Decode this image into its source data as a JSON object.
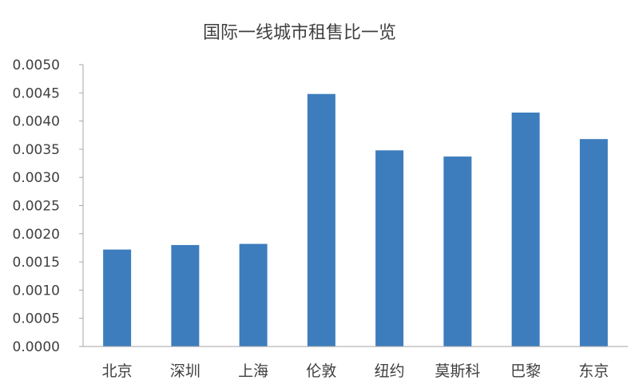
{
  "chart_data": {
    "type": "bar",
    "title": "国际一线城市租售比一览",
    "xlabel": "",
    "ylabel": "",
    "categories": [
      "北京",
      "深圳",
      "上海",
      "伦敦",
      "纽约",
      "莫斯科",
      "巴黎",
      "东京"
    ],
    "values": [
      0.00172,
      0.0018,
      0.00182,
      0.00448,
      0.00348,
      0.00337,
      0.00415,
      0.00368
    ],
    "ylim": [
      0,
      0.005
    ],
    "yticks": [
      "0.0000",
      "0.0005",
      "0.0010",
      "0.0015",
      "0.0020",
      "0.0025",
      "0.0030",
      "0.0035",
      "0.0040",
      "0.0045",
      "0.0050"
    ],
    "grid": false,
    "legend": "none",
    "bar_color": "#3d7dbd",
    "axis_color": "#a6a6a6"
  }
}
